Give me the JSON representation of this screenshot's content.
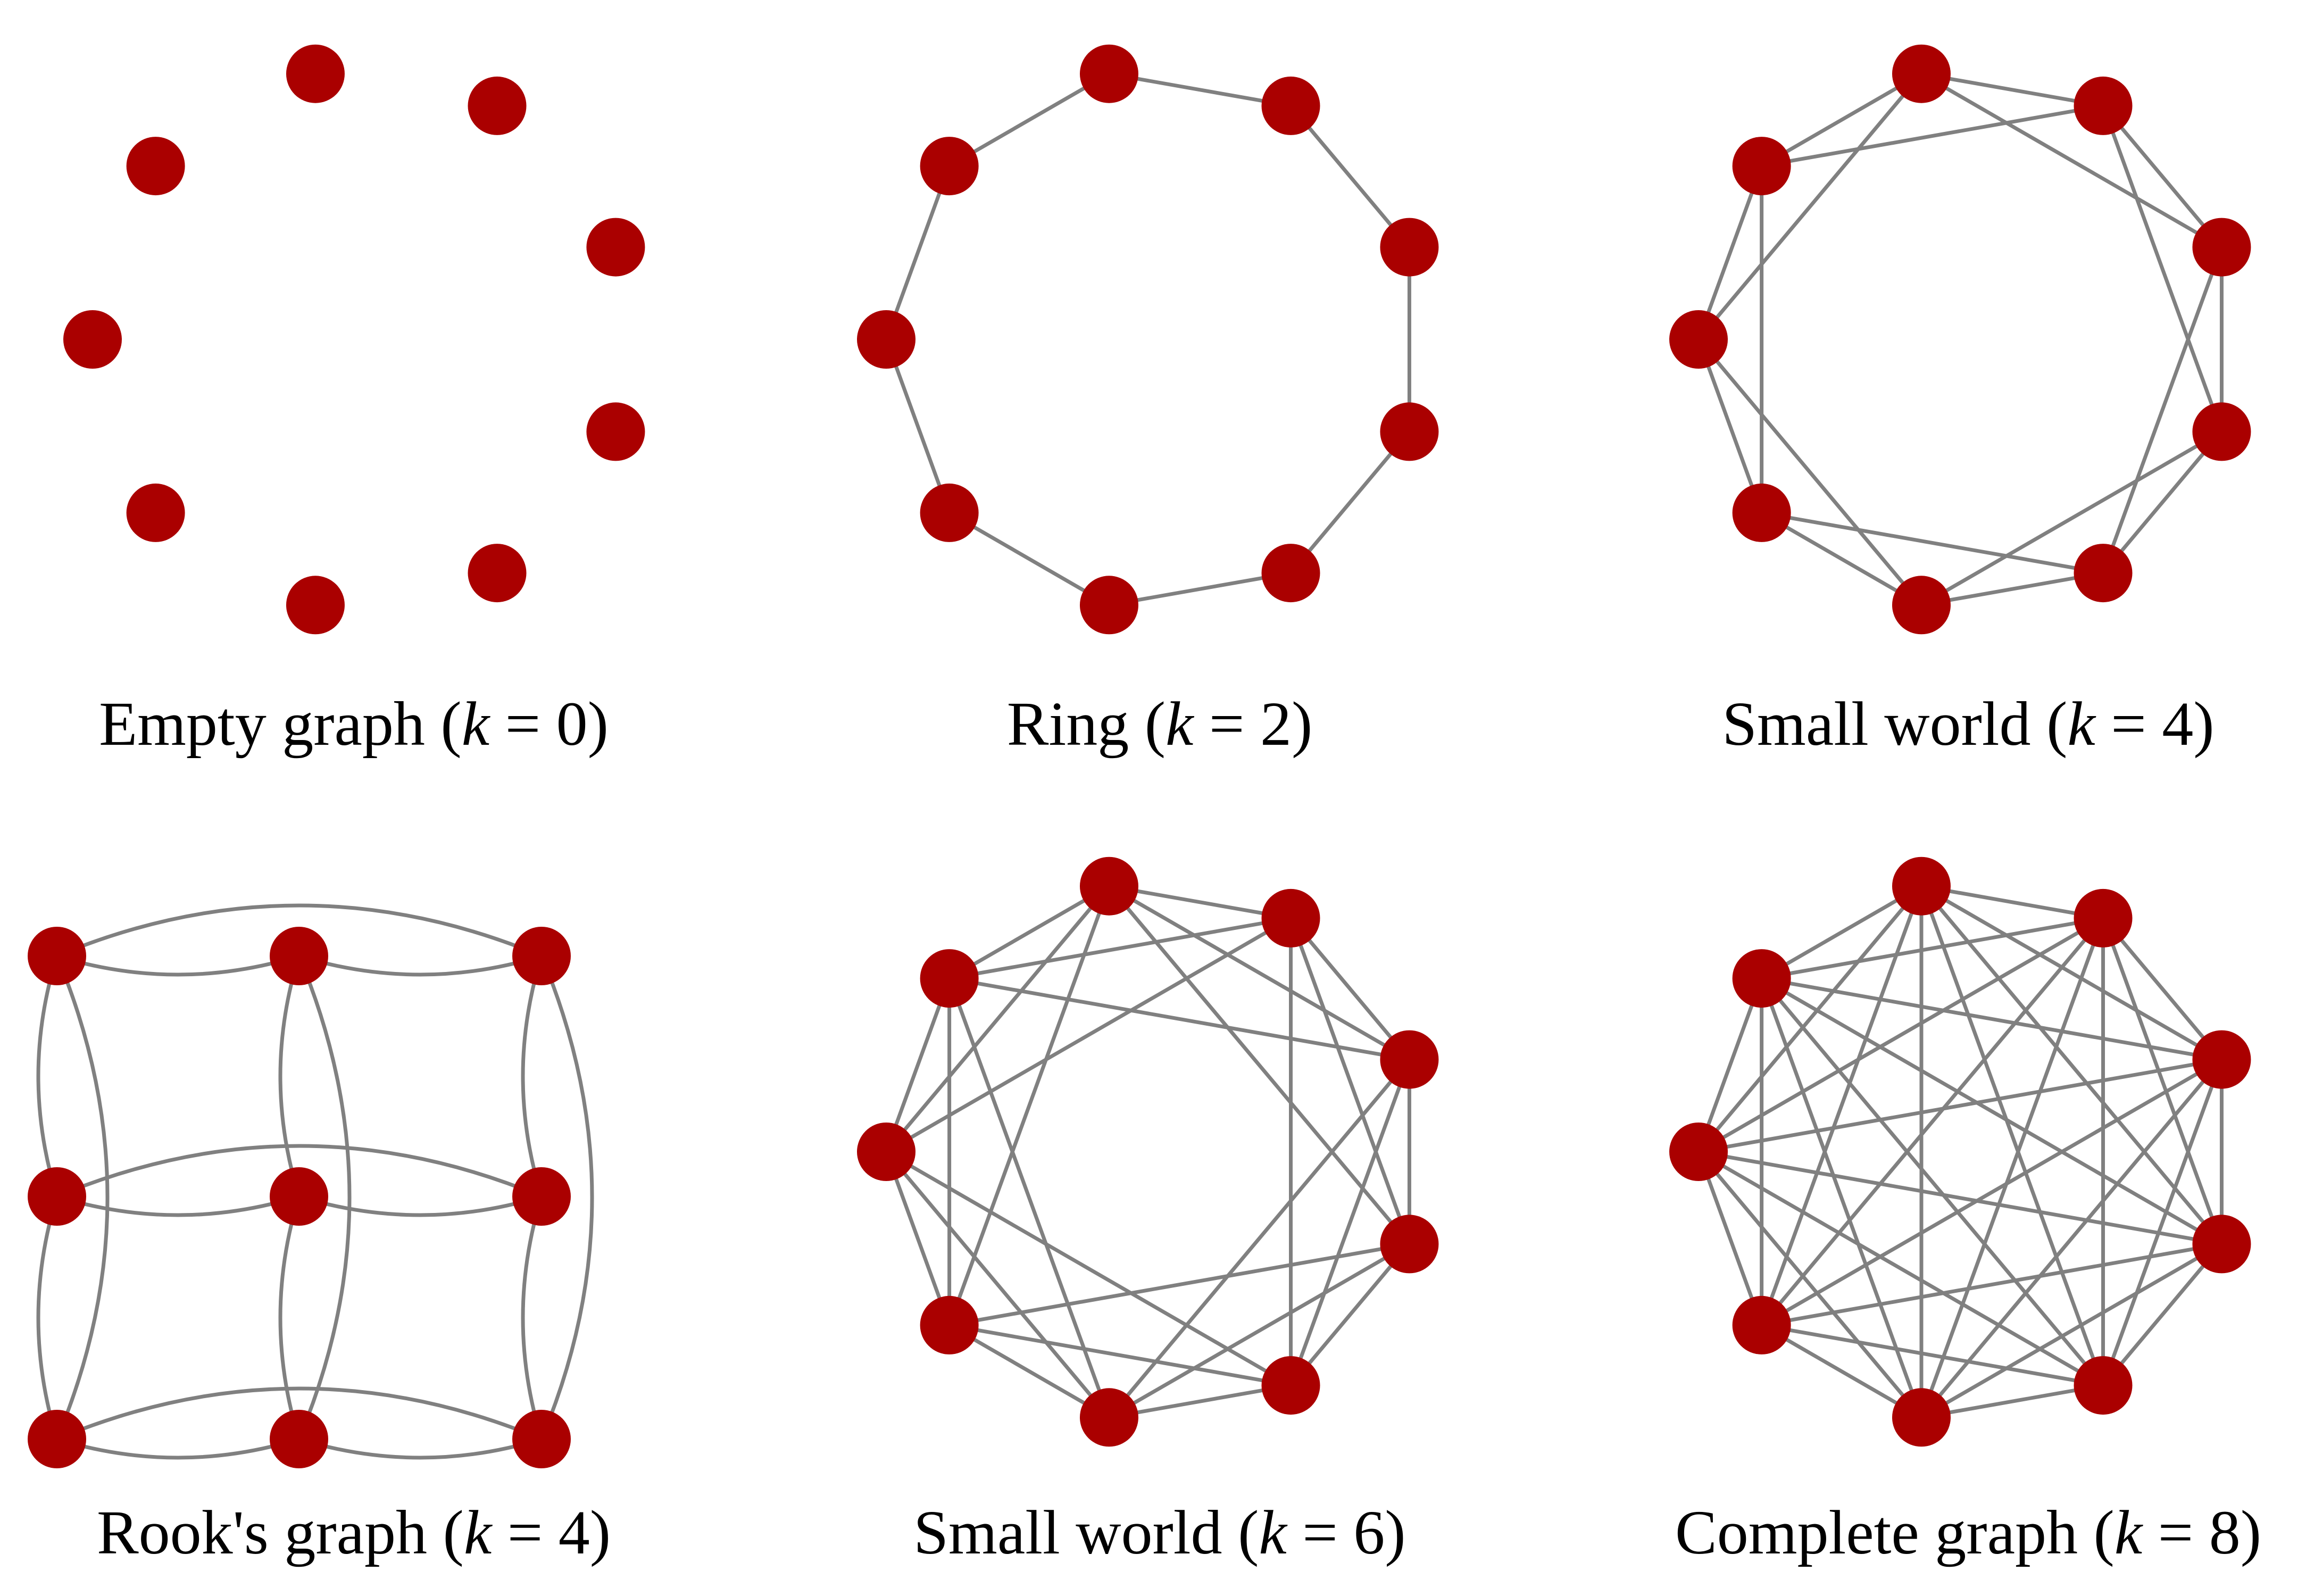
{
  "style": {
    "node_color": "#aa0000",
    "edge_color": "#808080",
    "background": "#ffffff"
  },
  "panels": [
    {
      "id": "empty",
      "caption": {
        "name": "Empty graph",
        "k": "0"
      },
      "layout": "circle",
      "n": 9,
      "k": 0
    },
    {
      "id": "ring",
      "caption": {
        "name": "Ring",
        "k": "2"
      },
      "layout": "circle",
      "n": 9,
      "k": 2
    },
    {
      "id": "small-world-4",
      "caption": {
        "name": "Small world",
        "k": "4"
      },
      "layout": "circle",
      "n": 9,
      "k": 4
    },
    {
      "id": "rook",
      "caption": {
        "name": "Rook's graph",
        "k": "4"
      },
      "layout": "grid",
      "n": 9,
      "k": 4
    },
    {
      "id": "small-world-6",
      "caption": {
        "name": "Small world",
        "k": "6"
      },
      "layout": "circle",
      "n": 9,
      "k": 6
    },
    {
      "id": "complete",
      "caption": {
        "name": "Complete graph",
        "k": "8"
      },
      "layout": "circle",
      "n": 9,
      "k": 8
    }
  ]
}
